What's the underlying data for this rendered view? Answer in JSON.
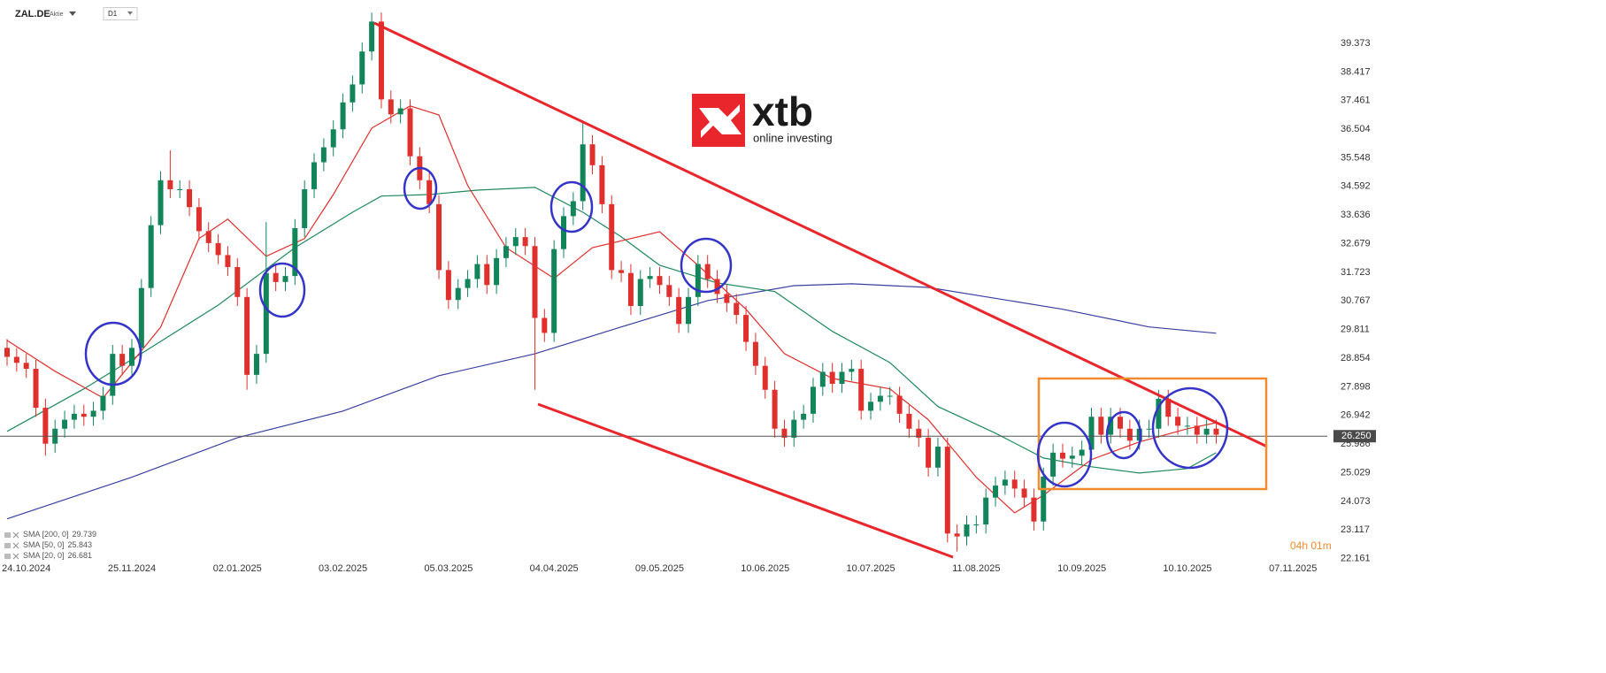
{
  "header": {
    "symbol": "ZAL.DE",
    "instrument_type": "Aktie",
    "timeframe": "D1"
  },
  "logo": {
    "brand": "xtb",
    "tagline": "online investing"
  },
  "countdown": "04h 01m",
  "chart_data": {
    "type": "candlestick",
    "categories": [
      null,
      null,
      "24.10.2024",
      null,
      null,
      null,
      null,
      null,
      null,
      null,
      null,
      null,
      null,
      "25.11.2024",
      null,
      null,
      null,
      null,
      null,
      null,
      null,
      null,
      null,
      null,
      "02.01.2025",
      null,
      null,
      null,
      null,
      null,
      null,
      null,
      null,
      null,
      null,
      "03.02.2025",
      null,
      null,
      null,
      null,
      null,
      null,
      null,
      null,
      null,
      null,
      "05.03.2025",
      null,
      null,
      null,
      null,
      null,
      null,
      null,
      null,
      null,
      null,
      "04.04.2025",
      null,
      null,
      null,
      null,
      null,
      null,
      null,
      null,
      null,
      null,
      "09.05.2025",
      null,
      null,
      null,
      null,
      null,
      null,
      null,
      null,
      null,
      null,
      "10.06.2025",
      null,
      null,
      null,
      null,
      null,
      null,
      null,
      null,
      null,
      null,
      "10.07.2025",
      null,
      null,
      null,
      null,
      null,
      null,
      null,
      null,
      null,
      null,
      "11.08.2025",
      null,
      null,
      null,
      null,
      null,
      null,
      null,
      null,
      null,
      null,
      "10.09.2025",
      null,
      null,
      null,
      null,
      null,
      null,
      null,
      null,
      null,
      null,
      "10.10.2025",
      null,
      null,
      null,
      null,
      null,
      null,
      null,
      null,
      null,
      null,
      "07.11.2025",
      null
    ],
    "open": [
      29.2,
      28.9,
      28.7,
      28.5,
      27.2,
      26.0,
      26.5,
      26.8,
      27.0,
      26.9,
      27.1,
      27.6,
      29.0,
      28.6,
      29.2,
      31.2,
      33.3,
      34.8,
      34.5,
      34.5,
      33.9,
      33.1,
      32.7,
      32.3,
      31.9,
      30.9,
      28.3,
      29.0,
      31.7,
      31.4,
      31.6,
      33.2,
      34.5,
      35.4,
      35.9,
      36.5,
      37.4,
      38.0,
      39.1,
      40.1,
      37.5,
      37.0,
      37.2,
      35.6,
      34.8,
      34.0,
      31.8,
      30.8,
      31.2,
      31.5,
      32.0,
      31.3,
      32.2,
      32.6,
      32.9,
      32.6,
      30.2,
      29.7,
      32.5,
      33.6,
      34.1,
      36.0,
      35.3,
      34.0,
      31.8,
      31.7,
      30.6,
      31.5,
      31.6,
      31.3,
      30.9,
      30.0,
      30.9,
      32.0,
      31.5,
      31.0,
      30.7,
      30.3,
      29.4,
      28.6,
      27.8,
      26.5,
      26.2,
      26.8,
      27.0,
      27.9,
      28.4,
      28.0,
      28.4,
      28.5,
      27.1,
      27.4,
      27.6,
      27.6,
      27.0,
      26.5,
      26.2,
      25.2,
      25.9,
      23.0,
      22.9,
      23.3,
      23.3,
      24.2,
      24.6,
      24.8,
      24.5,
      24.2,
      23.4,
      24.9,
      25.7,
      25.5,
      25.6,
      25.8,
      26.9,
      26.3,
      26.9,
      26.5,
      26.1,
      26.5,
      26.5,
      27.5,
      26.9,
      26.6,
      26.6,
      26.3,
      26.5,
      null,
      null,
      null,
      null,
      null,
      null,
      null,
      null,
      null
    ],
    "high": [
      29.5,
      29.2,
      29.0,
      28.8,
      27.5,
      26.8,
      27.1,
      27.3,
      27.3,
      27.4,
      27.9,
      29.3,
      29.3,
      29.5,
      31.5,
      33.6,
      35.1,
      35.8,
      34.8,
      34.8,
      34.2,
      33.4,
      33.0,
      32.6,
      32.2,
      31.2,
      29.3,
      33.4,
      32.0,
      31.9,
      33.5,
      34.8,
      35.7,
      36.2,
      36.8,
      37.7,
      38.3,
      39.4,
      40.4,
      40.4,
      37.8,
      37.5,
      37.5,
      35.9,
      35.1,
      34.3,
      32.1,
      31.5,
      31.8,
      32.3,
      32.3,
      32.5,
      32.9,
      33.2,
      33.2,
      32.9,
      30.5,
      32.8,
      33.9,
      34.4,
      36.8,
      36.3,
      35.6,
      34.3,
      32.1,
      32.0,
      31.8,
      31.9,
      31.9,
      31.6,
      31.2,
      31.2,
      32.3,
      32.3,
      31.8,
      31.3,
      31.0,
      30.6,
      29.7,
      28.9,
      28.1,
      26.8,
      27.1,
      27.3,
      28.2,
      28.7,
      28.7,
      28.7,
      28.8,
      28.8,
      27.7,
      27.9,
      27.9,
      27.9,
      27.3,
      26.8,
      26.5,
      26.2,
      26.2,
      23.3,
      23.6,
      23.6,
      24.5,
      24.9,
      25.1,
      25.1,
      24.8,
      24.5,
      25.2,
      26.0,
      26.0,
      25.9,
      26.1,
      27.2,
      27.2,
      27.2,
      27.2,
      26.8,
      26.8,
      26.8,
      27.8,
      27.8,
      27.2,
      26.9,
      26.9,
      26.8,
      26.8,
      null,
      null,
      null,
      null,
      null,
      null,
      null,
      null,
      null
    ],
    "low": [
      28.6,
      28.4,
      28.2,
      26.9,
      25.6,
      25.7,
      26.2,
      26.5,
      26.6,
      26.6,
      26.8,
      27.3,
      28.3,
      28.3,
      28.9,
      30.9,
      33.0,
      34.2,
      34.2,
      33.6,
      32.8,
      32.4,
      32.0,
      31.6,
      30.6,
      27.8,
      28.0,
      28.7,
      31.1,
      31.1,
      31.3,
      32.9,
      34.2,
      35.1,
      35.6,
      36.2,
      37.1,
      37.7,
      38.8,
      37.2,
      36.7,
      36.7,
      35.3,
      34.5,
      33.7,
      31.5,
      30.5,
      30.5,
      30.9,
      31.2,
      31.0,
      31.0,
      31.9,
      32.3,
      32.3,
      27.8,
      29.4,
      29.4,
      32.2,
      33.3,
      33.8,
      35.0,
      33.7,
      31.5,
      31.4,
      30.3,
      30.3,
      31.2,
      31.0,
      30.6,
      29.7,
      29.7,
      30.6,
      31.2,
      30.7,
      30.4,
      30.0,
      29.1,
      28.3,
      27.5,
      26.2,
      25.9,
      25.9,
      26.5,
      26.7,
      27.6,
      27.7,
      27.7,
      28.1,
      26.8,
      26.8,
      27.1,
      27.3,
      26.7,
      26.2,
      25.9,
      24.9,
      24.9,
      22.7,
      22.4,
      22.6,
      23.0,
      23.0,
      23.9,
      24.3,
      24.2,
      23.9,
      23.1,
      23.1,
      24.6,
      25.2,
      25.2,
      25.3,
      25.5,
      26.0,
      26.0,
      26.2,
      25.8,
      25.8,
      26.2,
      26.2,
      26.6,
      26.3,
      26.3,
      26.0,
      26.0,
      26.0,
      null,
      null,
      null,
      null,
      null,
      null,
      null,
      null,
      null
    ],
    "close": [
      28.9,
      28.7,
      28.5,
      27.2,
      26.0,
      26.5,
      26.8,
      27.0,
      26.9,
      27.1,
      27.6,
      29.0,
      28.6,
      29.2,
      31.2,
      33.3,
      34.8,
      34.5,
      34.5,
      33.9,
      33.1,
      32.7,
      32.3,
      31.9,
      30.9,
      28.3,
      29.0,
      31.7,
      31.4,
      31.6,
      33.2,
      34.5,
      35.4,
      35.9,
      36.5,
      37.4,
      38.0,
      39.1,
      40.1,
      37.5,
      37.0,
      37.2,
      35.6,
      34.8,
      34.0,
      31.8,
      30.8,
      31.2,
      31.5,
      32.0,
      31.3,
      32.2,
      32.6,
      32.9,
      32.6,
      30.2,
      29.7,
      32.5,
      33.6,
      34.1,
      36.0,
      35.3,
      34.0,
      31.8,
      31.7,
      30.6,
      31.5,
      31.6,
      31.3,
      30.9,
      30.0,
      30.9,
      32.0,
      31.5,
      31.0,
      30.7,
      30.3,
      29.4,
      28.6,
      27.8,
      26.5,
      26.2,
      26.8,
      27.0,
      27.9,
      28.4,
      28.0,
      28.4,
      28.5,
      27.1,
      27.4,
      27.6,
      27.6,
      27.0,
      26.5,
      26.2,
      25.2,
      25.9,
      23.0,
      22.9,
      23.3,
      23.3,
      24.2,
      24.6,
      24.8,
      24.5,
      24.2,
      23.4,
      24.9,
      25.7,
      25.5,
      25.6,
      25.8,
      26.9,
      26.3,
      26.9,
      26.5,
      26.1,
      26.5,
      26.5,
      27.5,
      26.9,
      26.6,
      26.6,
      26.3,
      26.5,
      26.3,
      null,
      null,
      null,
      null,
      null,
      null,
      null,
      null,
      null
    ],
    "up_color": "#12845a",
    "down_color": "#e0302d",
    "ylim": [
      21.56,
      40.82
    ],
    "yticks": [
      39.373,
      38.417,
      37.461,
      36.504,
      35.548,
      34.592,
      33.636,
      32.679,
      31.723,
      30.767,
      29.811,
      28.854,
      27.898,
      26.942,
      25.986,
      25.029,
      24.073,
      23.117,
      22.161
    ],
    "current_price": {
      "value": 26.25,
      "label": "26.250"
    },
    "series": [
      {
        "name": "SMA [200, 0]",
        "color": "#3a3fa0",
        "legend_value": 29.739,
        "x": [
          0,
          13,
          24,
          35,
          45,
          55,
          64,
          73,
          82,
          88,
          96,
          110,
          119,
          126
        ],
        "values": [
          23.49,
          24.88,
          26.2,
          27.09,
          28.27,
          29.0,
          29.9,
          30.78,
          31.28,
          31.34,
          31.22,
          30.49,
          29.9,
          29.69
        ]
      },
      {
        "name": "SMA [50, 0]",
        "color": "#1f8a5c",
        "legend_value": 25.843,
        "x": [
          0,
          8,
          14,
          22,
          30,
          36,
          39,
          44,
          49,
          55,
          60,
          64,
          68,
          74,
          80,
          86,
          92,
          97,
          103,
          108,
          113,
          118,
          123,
          126
        ],
        "values": [
          26.41,
          27.83,
          29.01,
          30.63,
          32.55,
          33.73,
          34.27,
          34.32,
          34.47,
          34.56,
          33.73,
          32.91,
          31.96,
          31.37,
          31.08,
          29.75,
          28.71,
          27.24,
          26.35,
          25.52,
          25.23,
          25.02,
          25.17,
          25.7
        ]
      },
      {
        "name": "SMA [20, 0]",
        "color": "#e0302d",
        "legend_value": 26.681,
        "x": [
          0,
          5,
          10,
          16,
          20,
          23,
          27,
          31,
          34,
          38,
          42,
          45,
          48,
          52,
          57,
          61,
          68,
          72,
          77,
          81,
          86,
          92,
          96,
          101,
          105,
          108,
          113,
          118,
          123,
          126
        ],
        "values": [
          29.45,
          28.42,
          27.53,
          29.89,
          32.85,
          33.5,
          32.26,
          32.85,
          34.32,
          36.54,
          37.28,
          36.98,
          34.62,
          32.55,
          31.52,
          32.55,
          33.08,
          31.96,
          30.49,
          29.01,
          28.18,
          27.83,
          26.8,
          24.88,
          23.69,
          24.28,
          25.47,
          26.06,
          26.5,
          26.7
        ]
      }
    ]
  }
}
